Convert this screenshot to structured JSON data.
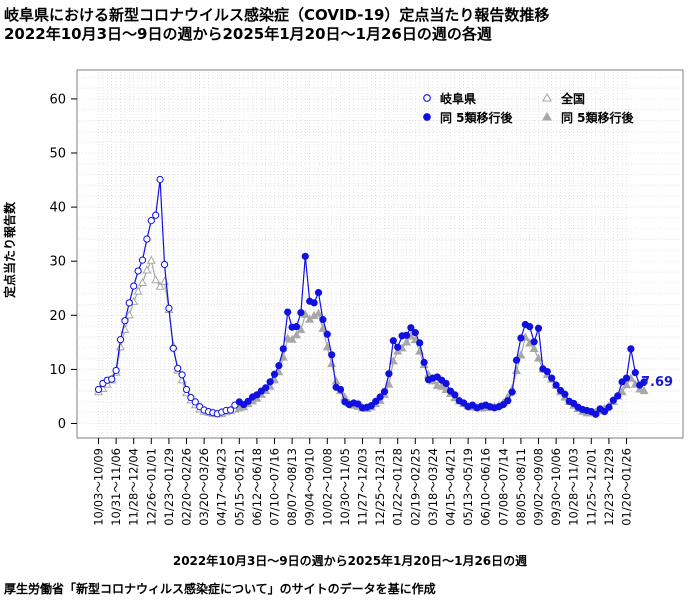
{
  "titles": {
    "line1": "岐阜県における新型コロナウイルス感染症（COVID-19）定点当たり報告数推移",
    "line2": "2022年10月3日～9日の週から2025年1月20日～1月26日の週の各週"
  },
  "x_caption": "2022年10月3日～9日の週から2025年1月20日～1月26日の週",
  "source_note": "厚生労働省「新型コロナウィルス感染症について」のサイトのデータを基に作成",
  "colors": {
    "gifu": "#1010e0",
    "national": "#a8a8a8",
    "end_label": "#1a1ad0",
    "grid": "#d0d0d0"
  },
  "chart_data": {
    "type": "line",
    "ylabel": "定点当たり報告数",
    "xlabel": "2022年10月3日～9日の週から2025年1月20日～1月26日の週",
    "ylim": [
      0,
      65
    ],
    "yticks": [
      0,
      10,
      20,
      30,
      40,
      50,
      60
    ],
    "grid": true,
    "legend_position": "top-right",
    "legend": [
      "岐阜県",
      "全国",
      "同 5類移行後",
      "同 5類移行後"
    ],
    "end_label": "7.69",
    "n_weeks": 121,
    "regime_change_index": 32,
    "x_tick_labels": [
      "10/03～10/09",
      "10/31～11/06",
      "11/28～12/04",
      "12/26～01/01",
      "01/23～01/29",
      "02/20～02/26",
      "03/20～03/26",
      "04/17～04/23",
      "05/15～05/21",
      "06/12～06/18",
      "07/10～07/16",
      "08/07～08/13",
      "09/04～09/10",
      "10/02～10/08",
      "10/30～11/05",
      "11/27～12/03",
      "12/25～12/31",
      "01/22～01/28",
      "02/19～02/25",
      "03/18～03/24",
      "04/15～04/21",
      "05/13～05/19",
      "06/10～06/16",
      "07/08～07/14",
      "08/05～08/11",
      "09/02～09/08",
      "09/30～10/06",
      "10/28～11/03",
      "11/25～12/01",
      "12/23～12/29",
      "01/20～01/26"
    ],
    "series": [
      {
        "name": "岐阜県",
        "values": [
          6.3,
          7.4,
          8.0,
          8.2,
          9.8,
          15.5,
          19.0,
          22.3,
          25.4,
          28.2,
          30.2,
          34.1,
          37.5,
          38.5,
          45.1,
          29.4,
          21.3,
          13.9,
          10.2,
          9.0,
          6.3,
          4.8,
          4.0,
          3.1,
          2.5,
          2.2,
          2.0,
          1.8,
          2.1,
          2.4,
          2.5,
          3.4,
          4.0,
          3.5,
          4.1,
          4.9,
          5.3,
          6.0,
          6.6,
          7.7,
          9.1,
          10.7,
          13.8,
          20.6,
          17.8,
          17.9,
          20.5,
          30.9,
          22.6,
          22.3,
          24.2,
          19.2,
          16.5,
          12.7,
          6.7,
          6.3,
          4.0,
          3.5,
          3.8,
          3.6,
          2.9,
          3.0,
          3.3,
          4.1,
          4.9,
          5.9,
          9.2,
          15.3,
          14.1,
          16.2,
          16.3,
          17.7,
          16.8,
          14.9,
          11.3,
          8.1,
          8.4,
          8.6,
          8.0,
          7.4,
          6.0,
          5.3,
          4.2,
          3.8,
          3.1,
          3.4,
          2.9,
          3.2,
          3.4,
          3.1,
          2.9,
          3.1,
          3.5,
          4.2,
          5.8,
          11.7,
          15.8,
          18.3,
          17.9,
          15.1,
          17.6,
          10.1,
          9.6,
          8.4,
          7.1,
          6.1,
          5.4,
          4.1,
          3.7,
          3.0,
          2.6,
          2.4,
          2.2,
          1.7,
          2.7,
          2.2,
          3.0,
          4.3,
          5.1,
          7.7,
          8.4,
          13.8,
          9.4,
          7.1,
          7.69
        ]
      },
      {
        "name": "全国",
        "values": [
          5.8,
          6.4,
          7.2,
          8.0,
          9.4,
          14.1,
          17.3,
          20.0,
          22.5,
          24.4,
          26.0,
          28.3,
          30.1,
          26.5,
          25.3,
          26.2,
          21.0,
          14.3,
          9.8,
          8.0,
          5.6,
          4.3,
          3.4,
          2.6,
          2.2,
          2.0,
          1.8,
          1.7,
          1.8,
          2.1,
          2.3,
          2.6,
          2.8,
          3.0,
          3.6,
          4.1,
          4.6,
          5.3,
          6.0,
          6.8,
          8.0,
          9.5,
          12.2,
          15.7,
          15.5,
          16.3,
          17.3,
          20.1,
          19.2,
          19.9,
          20.3,
          17.5,
          14.1,
          11.0,
          7.8,
          6.0,
          4.8,
          3.7,
          3.3,
          3.1,
          2.8,
          2.7,
          3.0,
          3.6,
          4.2,
          5.3,
          7.2,
          11.5,
          13.3,
          13.9,
          15.0,
          16.1,
          15.4,
          13.3,
          10.8,
          9.0,
          7.8,
          7.0,
          6.8,
          6.2,
          5.5,
          4.7,
          4.1,
          3.6,
          3.2,
          3.0,
          2.9,
          2.8,
          2.9,
          2.9,
          3.0,
          3.2,
          3.8,
          4.8,
          6.3,
          9.7,
          12.6,
          15.9,
          14.8,
          13.8,
          12.0,
          10.0,
          9.0,
          8.1,
          7.0,
          5.8,
          4.8,
          4.0,
          3.3,
          2.7,
          2.2,
          1.9,
          1.9,
          2.0,
          2.3,
          2.7,
          3.2,
          4.0,
          5.0,
          5.8,
          7.1,
          8.3,
          7.2,
          6.3,
          6.0
        ]
      }
    ]
  }
}
